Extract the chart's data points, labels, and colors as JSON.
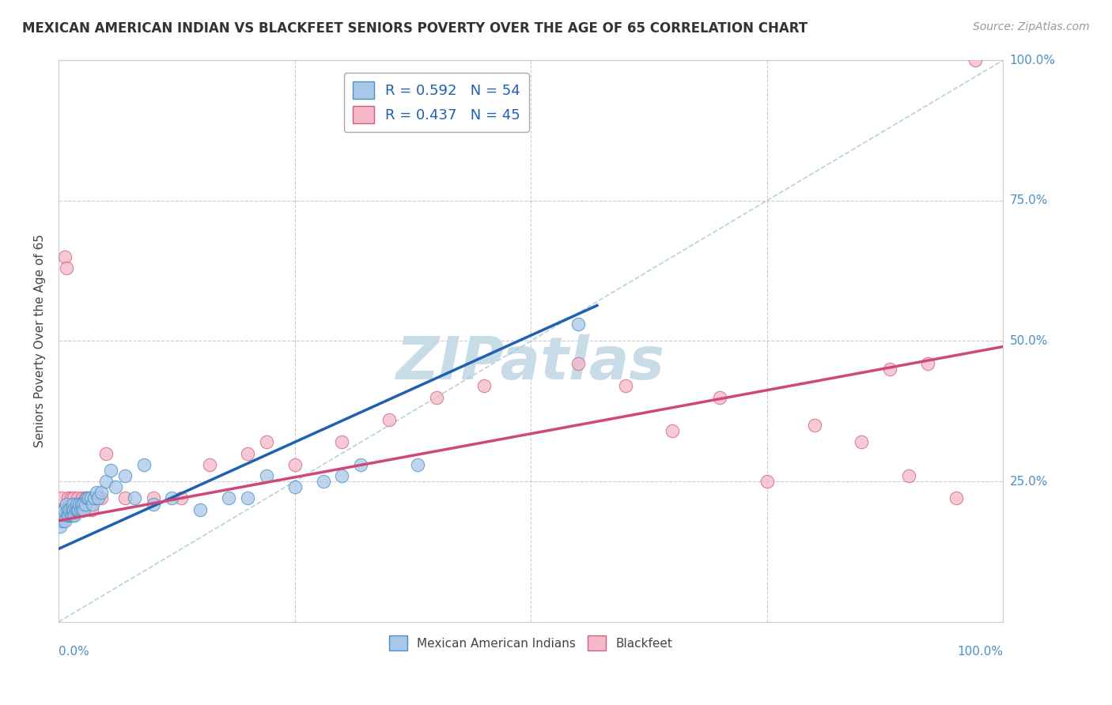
{
  "title": "MEXICAN AMERICAN INDIAN VS BLACKFEET SENIORS POVERTY OVER THE AGE OF 65 CORRELATION CHART",
  "source": "Source: ZipAtlas.com",
  "ylabel": "Seniors Poverty Over the Age of 65",
  "legend_label_1": "Mexican American Indians",
  "legend_label_2": "Blackfeet",
  "R1": 0.592,
  "N1": 54,
  "R2": 0.437,
  "N2": 45,
  "color_blue_fill": "#a8c8e8",
  "color_blue_edge": "#4a90c4",
  "color_pink_fill": "#f4b8c8",
  "color_pink_edge": "#d06080",
  "color_trendline_blue": "#2060b0",
  "color_trendline_pink": "#d04878",
  "color_dashed": "#7bafd4",
  "watermark_color": "#c8dce8",
  "background_color": "#ffffff",
  "grid_color": "#e0e0e0",
  "dashed_line_color": "#aaccdd",
  "blue_scatter_x": [
    0.002,
    0.003,
    0.004,
    0.005,
    0.006,
    0.007,
    0.008,
    0.009,
    0.01,
    0.011,
    0.012,
    0.013,
    0.014,
    0.015,
    0.015,
    0.016,
    0.017,
    0.018,
    0.019,
    0.02,
    0.021,
    0.022,
    0.023,
    0.024,
    0.025,
    0.026,
    0.027,
    0.028,
    0.03,
    0.032,
    0.034,
    0.036,
    0.038,
    0.04,
    0.042,
    0.045,
    0.05,
    0.055,
    0.06,
    0.07,
    0.08,
    0.09,
    0.1,
    0.12,
    0.15,
    0.18,
    0.2,
    0.22,
    0.25,
    0.28,
    0.3,
    0.32,
    0.38,
    0.55
  ],
  "blue_scatter_y": [
    0.17,
    0.19,
    0.18,
    0.19,
    0.2,
    0.18,
    0.21,
    0.19,
    0.2,
    0.19,
    0.2,
    0.19,
    0.2,
    0.19,
    0.21,
    0.2,
    0.19,
    0.2,
    0.21,
    0.2,
    0.2,
    0.21,
    0.2,
    0.21,
    0.2,
    0.21,
    0.2,
    0.21,
    0.22,
    0.22,
    0.22,
    0.21,
    0.22,
    0.23,
    0.22,
    0.23,
    0.25,
    0.27,
    0.24,
    0.26,
    0.22,
    0.28,
    0.21,
    0.22,
    0.2,
    0.22,
    0.22,
    0.26,
    0.24,
    0.25,
    0.26,
    0.28,
    0.28,
    0.53
  ],
  "pink_scatter_x": [
    0.002,
    0.003,
    0.005,
    0.006,
    0.007,
    0.008,
    0.009,
    0.01,
    0.012,
    0.013,
    0.015,
    0.016,
    0.018,
    0.02,
    0.022,
    0.025,
    0.028,
    0.03,
    0.035,
    0.04,
    0.045,
    0.05,
    0.07,
    0.1,
    0.13,
    0.16,
    0.2,
    0.22,
    0.25,
    0.3,
    0.35,
    0.4,
    0.45,
    0.55,
    0.6,
    0.65,
    0.7,
    0.75,
    0.8,
    0.85,
    0.88,
    0.9,
    0.92,
    0.95,
    0.97
  ],
  "pink_scatter_y": [
    0.2,
    0.22,
    0.19,
    0.2,
    0.65,
    0.63,
    0.2,
    0.22,
    0.2,
    0.22,
    0.2,
    0.22,
    0.2,
    0.22,
    0.21,
    0.22,
    0.22,
    0.22,
    0.2,
    0.22,
    0.22,
    0.3,
    0.22,
    0.22,
    0.22,
    0.28,
    0.3,
    0.32,
    0.28,
    0.32,
    0.36,
    0.4,
    0.42,
    0.46,
    0.42,
    0.34,
    0.4,
    0.25,
    0.35,
    0.32,
    0.45,
    0.26,
    0.46,
    0.22,
    1.0
  ]
}
